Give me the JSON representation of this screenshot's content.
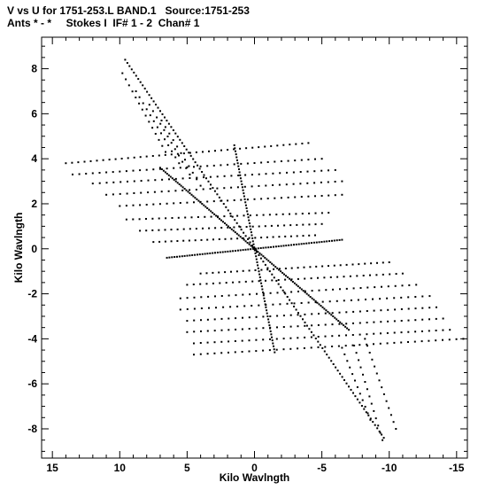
{
  "header": {
    "line1": "V vs U for 1751-253.L BAND.1   Source:1751-253",
    "line2": "Ants * - *     Stokes I  IF# 1 - 2  Chan# 1"
  },
  "chart_data": {
    "type": "scatter",
    "xlabel": "Kilo Wavlngth",
    "ylabel": "Kilo Wavlngth",
    "xlim": [
      15.8,
      -15.8
    ],
    "ylim": [
      -9.3,
      9.4
    ],
    "x_ticks": [
      15,
      10,
      5,
      0,
      -5,
      -10,
      -15
    ],
    "x_tick_labels": [
      "15",
      "10",
      "5",
      "0",
      "-5",
      "-10",
      "-15"
    ],
    "y_ticks": [
      8,
      6,
      4,
      2,
      0,
      -2,
      -4,
      -6,
      -8
    ],
    "y_tick_labels": [
      "8",
      "6",
      "4",
      "2",
      "0",
      "-2",
      "-4",
      "-6",
      "-8"
    ],
    "grid": false,
    "marker_color": "#000000",
    "tracks": [
      {
        "from": [
          0,
          0
        ],
        "to": [
          9.6,
          8.4
        ],
        "n": 60
      },
      {
        "from": [
          0,
          0
        ],
        "to": [
          -9.6,
          -8.4
        ],
        "n": 60
      },
      {
        "from": [
          0,
          0
        ],
        "to": [
          7.0,
          3.6
        ],
        "n": 55
      },
      {
        "from": [
          0,
          0
        ],
        "to": [
          -7.0,
          -3.6
        ],
        "n": 55
      },
      {
        "from": [
          1.5,
          4.6
        ],
        "to": [
          -1.5,
          -4.6
        ],
        "n": 70
      },
      {
        "from": [
          6.5,
          -0.4
        ],
        "to": [
          -6.5,
          0.4
        ],
        "n": 70
      },
      {
        "from": [
          14.0,
          3.8
        ],
        "to": [
          -4.0,
          4.7
        ],
        "n": 40
      },
      {
        "from": [
          13.5,
          3.3
        ],
        "to": [
          -5.0,
          4.0
        ],
        "n": 38
      },
      {
        "from": [
          12.0,
          2.9
        ],
        "to": [
          -6.0,
          3.5
        ],
        "n": 36
      },
      {
        "from": [
          11.0,
          2.4
        ],
        "to": [
          -6.5,
          3.0
        ],
        "n": 35
      },
      {
        "from": [
          10.0,
          1.9
        ],
        "to": [
          -6.5,
          2.4
        ],
        "n": 34
      },
      {
        "from": [
          9.5,
          1.3
        ],
        "to": [
          -5.5,
          1.6
        ],
        "n": 32
      },
      {
        "from": [
          8.5,
          0.8
        ],
        "to": [
          -5.0,
          1.1
        ],
        "n": 30
      },
      {
        "from": [
          7.5,
          0.3
        ],
        "to": [
          -4.5,
          0.6
        ],
        "n": 28
      },
      {
        "from": [
          4.0,
          -1.1
        ],
        "to": [
          -10.0,
          -0.6
        ],
        "n": 32
      },
      {
        "from": [
          5.0,
          -1.6
        ],
        "to": [
          -11.0,
          -1.1
        ],
        "n": 34
      },
      {
        "from": [
          5.5,
          -2.2
        ],
        "to": [
          -12.0,
          -1.6
        ],
        "n": 35
      },
      {
        "from": [
          5.5,
          -2.7
        ],
        "to": [
          -13.0,
          -2.1
        ],
        "n": 36
      },
      {
        "from": [
          5.0,
          -3.2
        ],
        "to": [
          -13.5,
          -2.6
        ],
        "n": 37
      },
      {
        "from": [
          5.0,
          -3.7
        ],
        "to": [
          -14.0,
          -3.1
        ],
        "n": 38
      },
      {
        "from": [
          4.5,
          -4.2
        ],
        "to": [
          -14.5,
          -3.6
        ],
        "n": 38
      },
      {
        "from": [
          4.5,
          -4.7
        ],
        "to": [
          -15.5,
          -4.0
        ],
        "n": 40
      },
      {
        "from": [
          9.8,
          7.8
        ],
        "to": [
          6.6,
          4.3
        ],
        "n": 14
      },
      {
        "from": [
          8.8,
          7.0
        ],
        "to": [
          5.6,
          3.8
        ],
        "n": 13
      },
      {
        "from": [
          7.8,
          6.4
        ],
        "to": [
          4.8,
          3.3
        ],
        "n": 12
      },
      {
        "from": [
          6.9,
          5.7
        ],
        "to": [
          4.0,
          2.8
        ],
        "n": 11
      },
      {
        "from": [
          -7.4,
          -4.3
        ],
        "to": [
          -9.5,
          -8.5
        ],
        "n": 14
      },
      {
        "from": [
          -8.2,
          -4.0
        ],
        "to": [
          -10.5,
          -8.0
        ],
        "n": 14
      },
      {
        "from": [
          -6.5,
          -4.4
        ],
        "to": [
          -8.6,
          -7.6
        ],
        "n": 12
      }
    ]
  }
}
